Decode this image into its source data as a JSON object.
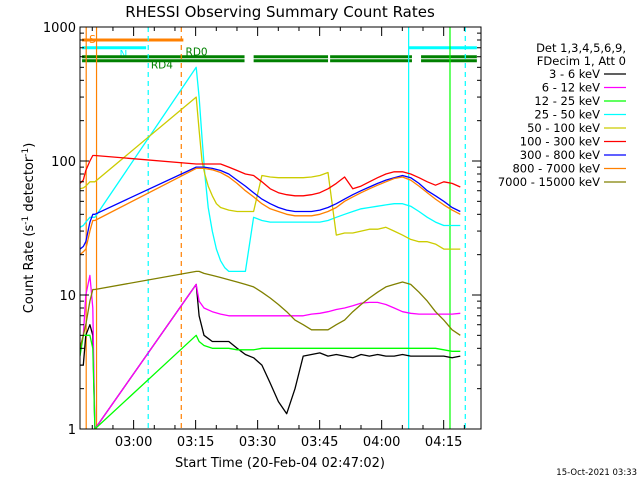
{
  "chart_data": {
    "type": "line",
    "title": "RHESSI Observing Summary Count Rates",
    "xlabel": "Start Time (20-Feb-04 02:47:02)",
    "ylabel_prefix": "Count Rate (s",
    "ylabel_sup1": "-1",
    "ylabel_mid": " detector",
    "ylabel_sup2": "-1",
    "ylabel_suffix": ")",
    "x_unit": "minutes since 02:47:02",
    "xlim": [
      0,
      97
    ],
    "ylim": [
      1,
      1000
    ],
    "yscale": "log",
    "x_ticks": [
      {
        "label": "03:00",
        "value": 12.97
      },
      {
        "label": "03:15",
        "value": 27.97
      },
      {
        "label": "03:30",
        "value": 42.97
      },
      {
        "label": "03:45",
        "value": 57.97
      },
      {
        "label": "04:00",
        "value": 72.97
      },
      {
        "label": "04:15",
        "value": 87.97
      }
    ],
    "y_ticks": [
      {
        "label": "1",
        "value": 1
      },
      {
        "label": "10",
        "value": 10
      },
      {
        "label": "100",
        "value": 100
      },
      {
        "label": "1000",
        "value": 1000
      }
    ],
    "legend_header": [
      "Det 1,3,4,5,6,9,",
      "FDecim 1, Att 0"
    ],
    "series": [
      {
        "name": "3 - 6 keV",
        "color": "#000000",
        "x": [
          0,
          0.8,
          1.4,
          2.4,
          3.1,
          3.6,
          28.1,
          28.8,
          30,
          32,
          34,
          36,
          38,
          40,
          42,
          44,
          46,
          48,
          50,
          52,
          54,
          56,
          58,
          60,
          62,
          64,
          66,
          68,
          70,
          72,
          74,
          76,
          78,
          80,
          82,
          84,
          86,
          88,
          90,
          92
        ],
        "values": [
          3,
          3,
          5,
          6,
          5,
          1,
          12,
          7,
          5,
          4.5,
          4.5,
          4.5,
          4,
          3.6,
          3.4,
          3,
          2.2,
          1.6,
          1.3,
          2,
          3.5,
          3.6,
          3.7,
          3.5,
          3.6,
          3.5,
          3.4,
          3.6,
          3.5,
          3.6,
          3.5,
          3.5,
          3.6,
          3.5,
          3.5,
          3.5,
          3.5,
          3.5,
          3.4,
          3.5
        ]
      },
      {
        "name": "6 - 12 keV",
        "color": "#ff00ff",
        "x": [
          0,
          0.8,
          1.4,
          2.4,
          3.1,
          3.6,
          28.1,
          28.8,
          30,
          32,
          34,
          36,
          38,
          40,
          42,
          44,
          46,
          48,
          50,
          52,
          54,
          56,
          58,
          60,
          62,
          64,
          66,
          68,
          70,
          72,
          74,
          76,
          78,
          80,
          82,
          84,
          86,
          88,
          90,
          92
        ],
        "values": [
          4,
          5,
          10,
          14,
          8,
          1,
          12,
          9,
          8,
          7.5,
          7.2,
          7,
          7,
          7,
          7,
          7,
          7,
          7,
          7,
          7,
          7,
          7.2,
          7.3,
          7.5,
          7.8,
          8,
          8.3,
          8.7,
          8.8,
          8.8,
          8.5,
          8,
          7.5,
          7.3,
          7.2,
          7.2,
          7.2,
          7.2,
          7.2,
          7.3
        ]
      },
      {
        "name": "12 - 25 keV",
        "color": "#00ff00",
        "x": [
          0,
          0.8,
          1.4,
          2.4,
          3.1,
          3.6,
          28.1,
          28.8,
          30,
          32,
          34,
          36,
          38,
          40,
          42,
          44,
          46,
          48,
          50,
          52,
          54,
          56,
          58,
          60,
          62,
          64,
          66,
          68,
          70,
          72,
          74,
          76,
          78,
          80,
          82,
          84,
          86,
          88,
          90,
          92
        ],
        "values": [
          3.5,
          5,
          5,
          5,
          4,
          1,
          5,
          4.5,
          4.2,
          4,
          4,
          4,
          3.9,
          3.9,
          3.9,
          4,
          4,
          4,
          4,
          4,
          4,
          4,
          4,
          4,
          4,
          4,
          4,
          4,
          4,
          4,
          4,
          4,
          4,
          4,
          4,
          4,
          4,
          3.9,
          3.8,
          3.8
        ]
      },
      {
        "name": "25 - 50 keV",
        "color": "#00ffff",
        "x": [
          0,
          0.8,
          1.4,
          2.4,
          3.1,
          3.6,
          28.1,
          28.8,
          29.5,
          30.2,
          31,
          32,
          33,
          34,
          35,
          36,
          37,
          38,
          39.5,
          40,
          42,
          44,
          46,
          48,
          50,
          52,
          54,
          56,
          58,
          60,
          62,
          64,
          66,
          68,
          70,
          72,
          74,
          76,
          78,
          80,
          82,
          84,
          86,
          88,
          90,
          92
        ],
        "values": [
          32,
          33,
          35,
          38,
          38,
          38,
          500,
          300,
          150,
          80,
          45,
          30,
          22,
          18,
          16,
          15,
          15,
          15,
          15,
          15,
          38,
          36,
          35,
          35,
          35,
          35,
          35,
          35,
          35,
          36,
          38,
          40,
          42,
          44,
          45,
          46,
          47,
          48,
          48,
          46,
          42,
          38,
          35,
          33,
          33,
          33
        ]
      },
      {
        "name": "50 - 100 keV",
        "color": "#cccc00",
        "x": [
          0,
          0.8,
          1.4,
          2.4,
          3.1,
          3.6,
          28.1,
          28.8,
          29.5,
          30.2,
          31,
          32,
          33,
          34,
          36,
          38,
          40,
          42,
          44,
          46,
          48,
          50,
          52,
          54,
          56,
          58,
          60,
          62,
          64,
          66,
          68,
          70,
          72,
          74,
          76,
          78,
          80,
          82,
          84,
          86,
          88,
          90,
          92
        ],
        "values": [
          62,
          63,
          65,
          70,
          70,
          70,
          300,
          170,
          100,
          80,
          65,
          55,
          48,
          45,
          43,
          42,
          42,
          42,
          78,
          76,
          75,
          75,
          75,
          75,
          76,
          78,
          82,
          28,
          29,
          29,
          30,
          31,
          31,
          32,
          30,
          28,
          26,
          25,
          25,
          24,
          22,
          22,
          22
        ]
      },
      {
        "name": "100 - 300 keV",
        "color": "#ff0000",
        "x": [
          0,
          0.8,
          1.4,
          2.4,
          3.1,
          3.6,
          28.1,
          28.8,
          30,
          31,
          32,
          34,
          36,
          38,
          40,
          42,
          44,
          46,
          48,
          50,
          52,
          54,
          56,
          58,
          60,
          62,
          64,
          66,
          68,
          70,
          72,
          74,
          76,
          78,
          80,
          82,
          84,
          86,
          88,
          90,
          92
        ],
        "values": [
          68,
          72,
          85,
          100,
          110,
          110,
          95,
          95,
          95,
          95,
          95,
          95,
          90,
          85,
          80,
          78,
          70,
          62,
          58,
          56,
          55,
          55,
          56,
          58,
          62,
          68,
          76,
          62,
          65,
          70,
          75,
          80,
          83,
          83,
          80,
          75,
          70,
          66,
          70,
          68,
          64
        ]
      },
      {
        "name": "300 - 800 keV",
        "color": "#0000ff",
        "x": [
          0,
          0.8,
          1.4,
          2.4,
          3.1,
          3.6,
          28.1,
          28.8,
          30,
          32,
          34,
          36,
          38,
          40,
          42,
          44,
          46,
          48,
          50,
          52,
          54,
          56,
          58,
          60,
          62,
          64,
          66,
          68,
          70,
          72,
          74,
          76,
          78,
          80,
          82,
          84,
          86,
          88,
          90,
          92
        ],
        "values": [
          22,
          23,
          25,
          35,
          40,
          40,
          90,
          90,
          90,
          88,
          85,
          80,
          72,
          65,
          58,
          52,
          48,
          45,
          43,
          42,
          42,
          42,
          43,
          45,
          48,
          52,
          56,
          60,
          64,
          68,
          72,
          75,
          78,
          75,
          68,
          60,
          55,
          50,
          45,
          42
        ]
      },
      {
        "name": "800 - 7000 keV",
        "color": "#ff8000",
        "x": [
          0,
          0.8,
          1.4,
          2.4,
          3.1,
          3.6,
          28.1,
          28.8,
          30,
          32,
          34,
          36,
          38,
          40,
          42,
          44,
          46,
          48,
          50,
          52,
          54,
          56,
          58,
          60,
          62,
          64,
          66,
          68,
          70,
          72,
          74,
          76,
          78,
          80,
          82,
          84,
          86,
          88,
          90,
          92
        ],
        "values": [
          20,
          21,
          22,
          30,
          36,
          36,
          88,
          88,
          88,
          86,
          82,
          76,
          68,
          60,
          54,
          48,
          44,
          42,
          40,
          39,
          39,
          39,
          40,
          42,
          45,
          50,
          54,
          58,
          62,
          66,
          70,
          74,
          76,
          72,
          65,
          58,
          52,
          47,
          43,
          40
        ]
      },
      {
        "name": "7000 - 15000 keV",
        "color": "#808000",
        "x": [
          0,
          0.8,
          1.4,
          2.4,
          3.1,
          3.6,
          28.1,
          28.8,
          30,
          32,
          34,
          36,
          38,
          40,
          42,
          44,
          46,
          48,
          50,
          52,
          54,
          56,
          58,
          60,
          62,
          64,
          66,
          68,
          70,
          72,
          74,
          76,
          78,
          80,
          82,
          84,
          86,
          88,
          90,
          92
        ],
        "values": [
          4,
          5,
          6,
          9,
          11,
          11,
          15,
          15,
          14.5,
          14,
          13.5,
          13,
          12.5,
          12,
          11.5,
          10.5,
          9.5,
          8.5,
          7.5,
          6.5,
          6,
          5.5,
          5.5,
          5.5,
          6,
          6.5,
          7.5,
          8.5,
          9.5,
          10.5,
          11.5,
          12,
          12.5,
          12,
          10.5,
          9,
          7.5,
          6.5,
          5.5,
          5
        ]
      }
    ],
    "flag_bars": [
      {
        "label": "S",
        "color": "#ff8000",
        "y": 800,
        "segments": [
          [
            0.5,
            25
          ]
        ]
      },
      {
        "label": "N",
        "color": "#00ffff",
        "y": 700,
        "segments": [
          [
            0.5,
            16
          ],
          [
            79.5,
            96
          ]
        ]
      },
      {
        "label": "RD4",
        "color": "#008000",
        "y": 600,
        "segments": [
          [
            0.5,
            39.8
          ],
          [
            42,
            60
          ],
          [
            60.5,
            80.3
          ],
          [
            82.5,
            96
          ]
        ]
      },
      {
        "label": "RD0",
        "color": "#008000",
        "y": 560,
        "segments": [
          [
            0.5,
            39.8
          ],
          [
            42,
            60
          ],
          [
            60.5,
            80.3
          ],
          [
            82.5,
            96
          ]
        ]
      }
    ],
    "vlines": [
      {
        "x": 1.5,
        "color": "#ff8000",
        "style": "solid"
      },
      {
        "x": 4,
        "color": "#ff8000",
        "style": "solid"
      },
      {
        "x": 16.5,
        "color": "#00ffff",
        "style": "dashed"
      },
      {
        "x": 24.5,
        "color": "#ff8000",
        "style": "dashed"
      },
      {
        "x": 79.5,
        "color": "#00ffff",
        "style": "solid"
      },
      {
        "x": 89.5,
        "color": "#00ff00",
        "style": "solid"
      },
      {
        "x": 93.2,
        "color": "#00ffff",
        "style": "dashed"
      }
    ],
    "timestamp": "15-Oct-2021 03:33",
    "grid": false,
    "legend_position": "right"
  }
}
